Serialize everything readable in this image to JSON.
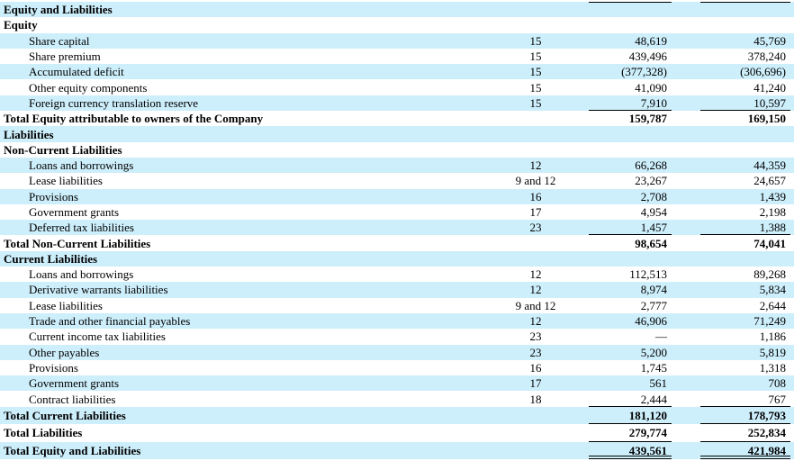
{
  "table": {
    "rows": [
      {
        "label": "Equity and Liabilities"
      },
      {
        "label": "Equity"
      },
      {
        "label": "Share capital",
        "note": "15",
        "v1": "48,619",
        "v2": "45,769"
      },
      {
        "label": "Share premium",
        "note": "15",
        "v1": "439,496",
        "v2": "378,240"
      },
      {
        "label": "Accumulated deficit",
        "note": "15",
        "v1": "(377,328)",
        "v2": "(306,696)"
      },
      {
        "label": "Other equity components",
        "note": "15",
        "v1": "41,090",
        "v2": "41,240"
      },
      {
        "label": "Foreign currency translation reserve",
        "note": "15",
        "v1": "7,910",
        "v2": "10,597"
      },
      {
        "label": "Total Equity attributable to owners of the Company",
        "v1": "159,787",
        "v2": "169,150"
      },
      {
        "label": "Liabilities"
      },
      {
        "label": "Non-Current Liabilities"
      },
      {
        "label": "Loans and borrowings",
        "note": "12",
        "v1": "66,268",
        "v2": "44,359"
      },
      {
        "label": "Lease liabilities",
        "note": "9 and 12",
        "v1": "23,267",
        "v2": "24,657"
      },
      {
        "label": "Provisions",
        "note": "16",
        "v1": "2,708",
        "v2": "1,439"
      },
      {
        "label": "Government grants",
        "note": "17",
        "v1": "4,954",
        "v2": "2,198"
      },
      {
        "label": "Deferred tax liabilities",
        "note": "23",
        "v1": "1,457",
        "v2": "1,388"
      },
      {
        "label": "Total Non-Current Liabilities",
        "v1": "98,654",
        "v2": "74,041"
      },
      {
        "label": "Current Liabilities"
      },
      {
        "label": "Loans and borrowings",
        "note": "12",
        "v1": "112,513",
        "v2": "89,268"
      },
      {
        "label": "Derivative warrants liabilities",
        "note": "12",
        "v1": "8,974",
        "v2": "5,834"
      },
      {
        "label": "Lease liabilities",
        "note": "9 and 12",
        "v1": "2,777",
        "v2": "2,644"
      },
      {
        "label": "Trade and other financial payables",
        "note": "12",
        "v1": "46,906",
        "v2": "71,249"
      },
      {
        "label": "Current income tax liabilities",
        "note": "23",
        "v1": "—",
        "v2": "1,186"
      },
      {
        "label": "Other payables",
        "note": "23",
        "v1": "5,200",
        "v2": "5,819"
      },
      {
        "label": "Provisions",
        "note": "16",
        "v1": "1,745",
        "v2": "1,318"
      },
      {
        "label": "Government grants",
        "note": "17",
        "v1": "561",
        "v2": "708"
      },
      {
        "label": "Contract liabilities",
        "note": "18",
        "v1": "2,444",
        "v2": "767"
      },
      {
        "label": "Total Current Liabilities",
        "v1": "181,120",
        "v2": "178,793"
      },
      {
        "label": "Total Liabilities",
        "v1": "279,774",
        "v2": "252,834"
      },
      {
        "label": "Total Equity and Liabilities",
        "v1": "439,561",
        "v2": "421,984"
      }
    ]
  }
}
